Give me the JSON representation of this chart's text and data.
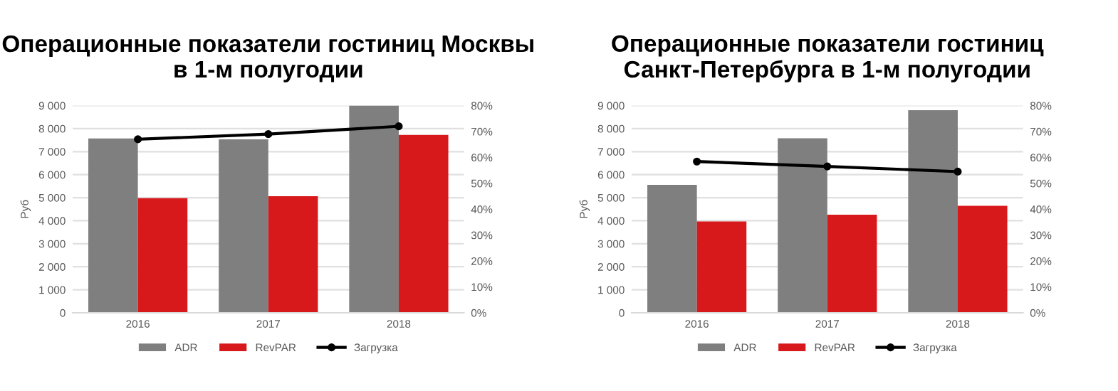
{
  "chart_data": [
    {
      "type": "bar",
      "title": "Операционные показатели гостиниц Москвы в 1-м полугодии",
      "ylabel": "Руб",
      "categories": [
        "2016",
        "2017",
        "2018"
      ],
      "series": [
        {
          "name": "ADR",
          "color": "#7f7f7f",
          "values": [
            7570,
            7530,
            9000
          ]
        },
        {
          "name": "RevPAR",
          "color": "#d7191c",
          "values": [
            4980,
            5060,
            7730
          ]
        },
        {
          "name": "Загрузка",
          "type": "line",
          "axis": "y2",
          "color": "#000000",
          "values": [
            67,
            69,
            72
          ]
        }
      ],
      "ylim": [
        0,
        9000
      ],
      "yticks": [
        {
          "value": 0,
          "label": "0"
        },
        {
          "value": 1000,
          "label": "1 000"
        },
        {
          "value": 2000,
          "label": "2 000"
        },
        {
          "value": 3000,
          "label": "3 000"
        },
        {
          "value": 4000,
          "label": "4 000"
        },
        {
          "value": 5000,
          "label": "5 000"
        },
        {
          "value": 6000,
          "label": "6 000"
        },
        {
          "value": 7000,
          "label": "7 000"
        },
        {
          "value": 8000,
          "label": "8 000"
        },
        {
          "value": 9000,
          "label": "9 000"
        }
      ],
      "y2lim": [
        0,
        80
      ],
      "y2ticks": [
        {
          "value": 0,
          "label": "0%"
        },
        {
          "value": 10,
          "label": "10%"
        },
        {
          "value": 20,
          "label": "20%"
        },
        {
          "value": 30,
          "label": "30%"
        },
        {
          "value": 40,
          "label": "40%"
        },
        {
          "value": 50,
          "label": "50%"
        },
        {
          "value": 60,
          "label": "60%"
        },
        {
          "value": 70,
          "label": "70%"
        },
        {
          "value": 80,
          "label": "80%"
        }
      ],
      "grid": "y",
      "legend": "bottom",
      "marker": "circle"
    },
    {
      "type": "bar",
      "title": "Операционные показатели гостиниц Санкт-Петербурга в 1-м полугодии",
      "ylabel": "Руб",
      "categories": [
        "2016",
        "2017",
        "2018"
      ],
      "series": [
        {
          "name": "ADR",
          "color": "#7f7f7f",
          "values": [
            5560,
            7580,
            8800
          ]
        },
        {
          "name": "RevPAR",
          "color": "#d7191c",
          "values": [
            3970,
            4260,
            4650
          ]
        },
        {
          "name": "Загрузка",
          "type": "line",
          "axis": "y2",
          "color": "#000000",
          "values": [
            58.4,
            56.5,
            54.5
          ]
        }
      ],
      "ylim": [
        0,
        9000
      ],
      "yticks": [
        {
          "value": 0,
          "label": "0"
        },
        {
          "value": 1000,
          "label": "1 000"
        },
        {
          "value": 2000,
          "label": "2 000"
        },
        {
          "value": 3000,
          "label": "3 000"
        },
        {
          "value": 4000,
          "label": "4 000"
        },
        {
          "value": 5000,
          "label": "5 000"
        },
        {
          "value": 6000,
          "label": "6 000"
        },
        {
          "value": 7000,
          "label": "7 000"
        },
        {
          "value": 8000,
          "label": "8 000"
        },
        {
          "value": 9000,
          "label": "9 000"
        }
      ],
      "y2lim": [
        0,
        80
      ],
      "y2ticks": [
        {
          "value": 0,
          "label": "0%"
        },
        {
          "value": 10,
          "label": "10%"
        },
        {
          "value": 20,
          "label": "20%"
        },
        {
          "value": 30,
          "label": "30%"
        },
        {
          "value": 40,
          "label": "40%"
        },
        {
          "value": 50,
          "label": "50%"
        },
        {
          "value": 60,
          "label": "60%"
        },
        {
          "value": 70,
          "label": "70%"
        },
        {
          "value": 80,
          "label": "80%"
        }
      ],
      "grid": "y",
      "legend": "bottom",
      "marker": "circle"
    }
  ]
}
